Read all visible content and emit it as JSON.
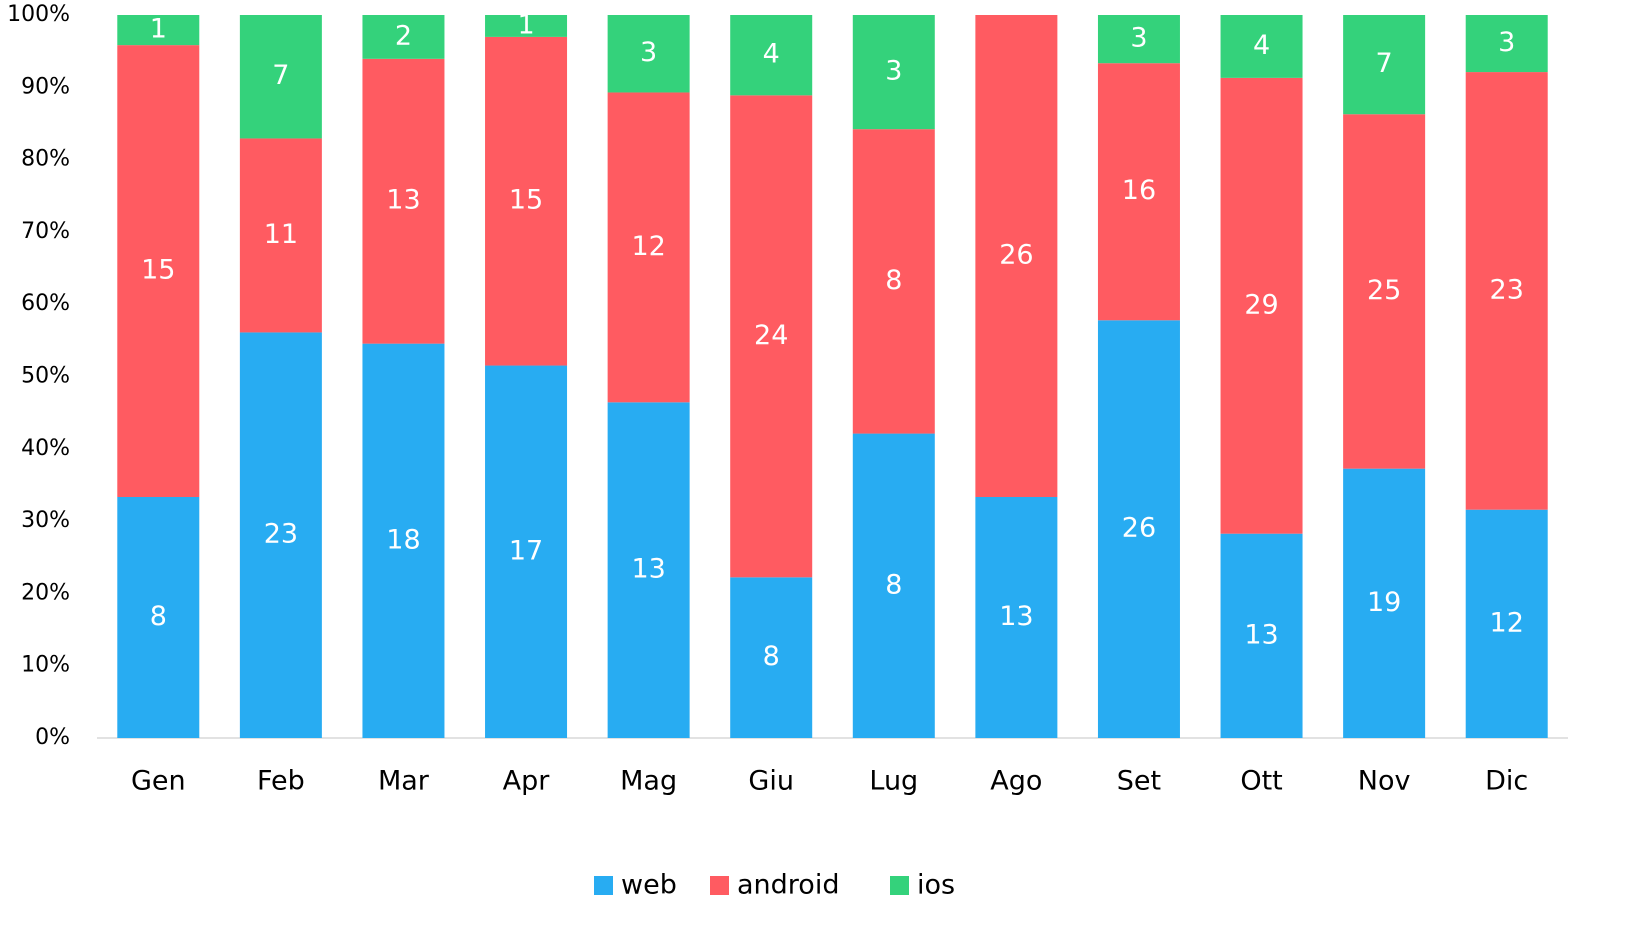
{
  "chart_data": {
    "type": "bar",
    "stacking": "percent",
    "categories": [
      "Gen",
      "Feb",
      "Mar",
      "Apr",
      "Mag",
      "Giu",
      "Lug",
      "Ago",
      "Set",
      "Ott",
      "Nov",
      "Dic"
    ],
    "series": [
      {
        "name": "web",
        "color": "#28acf2",
        "values": [
          8,
          23,
          18,
          17,
          13,
          8,
          8,
          13,
          26,
          13,
          19,
          12
        ]
      },
      {
        "name": "android",
        "color": "#ff5b61",
        "values": [
          15,
          11,
          13,
          15,
          12,
          24,
          8,
          26,
          16,
          29,
          25,
          23
        ]
      },
      {
        "name": "ios",
        "color": "#34d27b",
        "values": [
          1,
          7,
          2,
          1,
          3,
          4,
          3,
          null,
          3,
          4,
          7,
          3
        ]
      }
    ],
    "ylim": [
      0,
      100
    ],
    "yticks": [
      {
        "value": 0,
        "label": "0%"
      },
      {
        "value": 10,
        "label": "10%"
      },
      {
        "value": 20,
        "label": "20%"
      },
      {
        "value": 30,
        "label": "30%"
      },
      {
        "value": 40,
        "label": "40%"
      },
      {
        "value": 50,
        "label": "50%"
      },
      {
        "value": 60,
        "label": "60%"
      },
      {
        "value": 70,
        "label": "70%"
      },
      {
        "value": 80,
        "label": "80%"
      },
      {
        "value": 90,
        "label": "90%"
      },
      {
        "value": 100,
        "label": "100%"
      }
    ],
    "grid": false,
    "legend": "bottom"
  }
}
